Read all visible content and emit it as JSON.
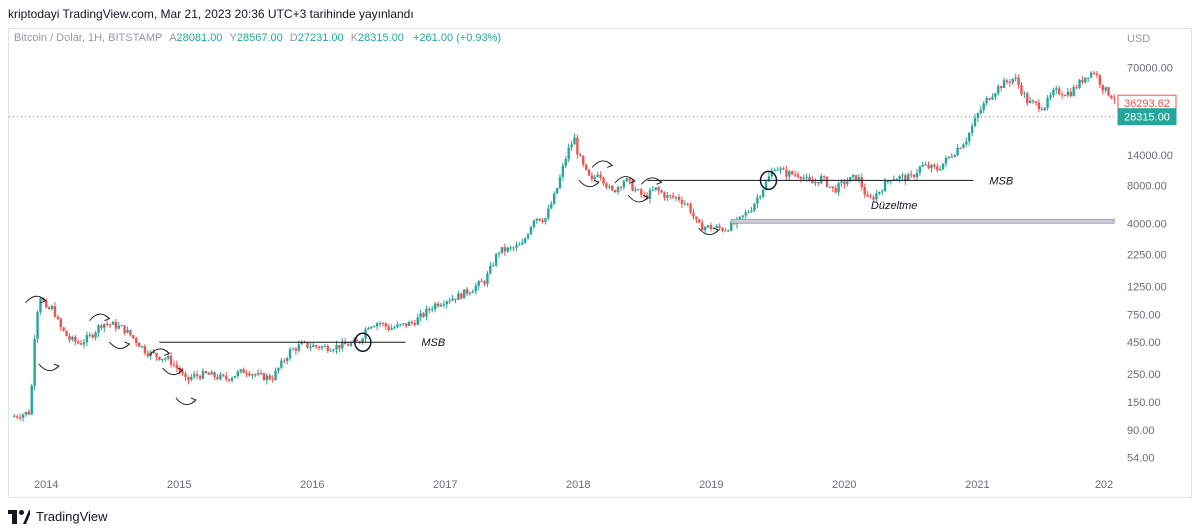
{
  "header": {
    "published": "kriptodayi TradingView.com, Mar 21, 2023 20:36 UTC+3 tarihinde yayınlandı"
  },
  "legend": {
    "symbol": "Bitcoin / Dolar, 1H, BITSTAMP",
    "open_label": "A",
    "open": "28081.00",
    "high_label": "Y",
    "high": "28567.00",
    "low_label": "D",
    "low": "27231.00",
    "close_label": "K",
    "close": "28315.00",
    "change": "+261.00 (+0.93%)"
  },
  "footer": {
    "brand": "TradingView"
  },
  "colors": {
    "up": "#26a69a",
    "down": "#ef5350",
    "grid": "#f0f3fa",
    "priceline": "#26a69a",
    "highprice": "#ef5350"
  },
  "chart_data": {
    "type": "candlestick",
    "scale": "log",
    "currency": "USD",
    "ylim": [
      40,
      100000
    ],
    "y_ticks": [
      54,
      90,
      150,
      250,
      450,
      750,
      1250,
      2250,
      4000,
      8000,
      14000,
      70000
    ],
    "y_tick_labels": [
      "54.00",
      "90.00",
      "150.00",
      "250.00",
      "450.00",
      "750.00",
      "1250.00",
      "2250.00",
      "4000.00",
      "8000.00",
      "14000.00",
      "70000.00"
    ],
    "x_ticks": [
      "2014",
      "2015",
      "2016",
      "2017",
      "2018",
      "2019",
      "2020",
      "2021",
      "202"
    ],
    "price_series": [
      [
        2013.75,
        115
      ],
      [
        2013.88,
        125
      ],
      [
        2013.92,
        700
      ],
      [
        2013.96,
        1100
      ],
      [
        2014.0,
        800
      ],
      [
        2014.05,
        850
      ],
      [
        2014.1,
        600
      ],
      [
        2014.17,
        480
      ],
      [
        2014.25,
        440
      ],
      [
        2014.33,
        500
      ],
      [
        2014.42,
        640
      ],
      [
        2014.5,
        620
      ],
      [
        2014.58,
        580
      ],
      [
        2014.67,
        470
      ],
      [
        2014.75,
        380
      ],
      [
        2014.83,
        350
      ],
      [
        2014.92,
        330
      ],
      [
        2015.0,
        270
      ],
      [
        2015.05,
        220
      ],
      [
        2015.1,
        240
      ],
      [
        2015.2,
        250
      ],
      [
        2015.35,
        230
      ],
      [
        2015.5,
        270
      ],
      [
        2015.6,
        240
      ],
      [
        2015.7,
        235
      ],
      [
        2015.83,
        380
      ],
      [
        2015.92,
        430
      ],
      [
        2016.0,
        420
      ],
      [
        2016.1,
        410
      ],
      [
        2016.2,
        420
      ],
      [
        2016.35,
        450
      ],
      [
        2016.42,
        620
      ],
      [
        2016.5,
        650
      ],
      [
        2016.58,
        580
      ],
      [
        2016.67,
        610
      ],
      [
        2016.75,
        640
      ],
      [
        2016.83,
        740
      ],
      [
        2016.92,
        900
      ],
      [
        2017.0,
        980
      ],
      [
        2017.1,
        1050
      ],
      [
        2017.2,
        1200
      ],
      [
        2017.3,
        1400
      ],
      [
        2017.4,
        2400
      ],
      [
        2017.5,
        2500
      ],
      [
        2017.58,
        2700
      ],
      [
        2017.67,
        4500
      ],
      [
        2017.75,
        4300
      ],
      [
        2017.83,
        7000
      ],
      [
        2017.92,
        15000
      ],
      [
        2017.97,
        19000
      ],
      [
        2018.0,
        14000
      ],
      [
        2018.05,
        10500
      ],
      [
        2018.1,
        8500
      ],
      [
        2018.15,
        10500
      ],
      [
        2018.25,
        7000
      ],
      [
        2018.35,
        9000
      ],
      [
        2018.42,
        7500
      ],
      [
        2018.5,
        6400
      ],
      [
        2018.58,
        7500
      ],
      [
        2018.67,
        6500
      ],
      [
        2018.75,
        6400
      ],
      [
        2018.83,
        5500
      ],
      [
        2018.9,
        3800
      ],
      [
        2019.0,
        3700
      ],
      [
        2019.1,
        3600
      ],
      [
        2019.2,
        4100
      ],
      [
        2019.3,
        5300
      ],
      [
        2019.4,
        8000
      ],
      [
        2019.48,
        11500
      ],
      [
        2019.55,
        10000
      ],
      [
        2019.67,
        9800
      ],
      [
        2019.75,
        8200
      ],
      [
        2019.83,
        9200
      ],
      [
        2019.92,
        7300
      ],
      [
        2020.0,
        8500
      ],
      [
        2020.1,
        9500
      ],
      [
        2020.18,
        6000
      ],
      [
        2020.25,
        7000
      ],
      [
        2020.35,
        9300
      ],
      [
        2020.5,
        9200
      ],
      [
        2020.58,
        11500
      ],
      [
        2020.7,
        10800
      ],
      [
        2020.83,
        15000
      ],
      [
        2020.92,
        19000
      ],
      [
        2021.0,
        29000
      ],
      [
        2021.08,
        40000
      ],
      [
        2021.17,
        50000
      ],
      [
        2021.28,
        58000
      ],
      [
        2021.38,
        37000
      ],
      [
        2021.5,
        34000
      ],
      [
        2021.58,
        45000
      ],
      [
        2021.7,
        44000
      ],
      [
        2021.83,
        62000
      ],
      [
        2021.88,
        65000
      ],
      [
        2021.95,
        47000
      ],
      [
        2022.03,
        40000
      ]
    ],
    "annotations": [
      {
        "text": "MSB",
        "level": 450,
        "x_from": 2014.85,
        "x_to": 2016.7
      },
      {
        "text": "MSB",
        "level": 8800,
        "x_from": 2018.52,
        "x_to": 2020.97
      },
      {
        "text": "Düzeltme",
        "x": 2020.2,
        "y": 5200
      }
    ],
    "support_zone": {
      "from": 4000,
      "to": 4300,
      "x_from": 2019.15,
      "x_to": 2022.03
    },
    "price_labels": [
      {
        "text": "36293.62",
        "value": 36293.62,
        "kind": "high"
      },
      {
        "text": "28315.00",
        "value": 28315,
        "kind": "last"
      }
    ],
    "last_price_display": 28315,
    "last_price_line_value": 28315
  }
}
